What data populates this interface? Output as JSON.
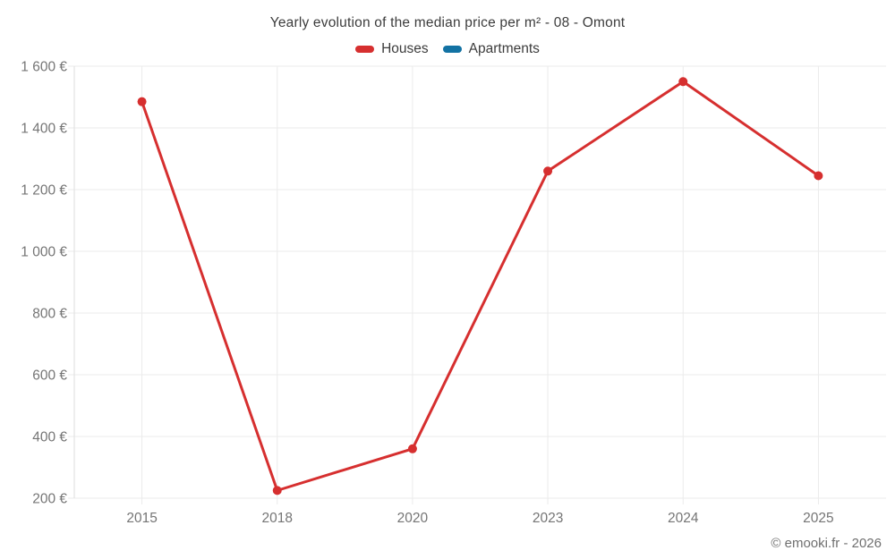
{
  "chart_data": {
    "type": "line",
    "title": "Yearly evolution of the median price per m² - 08 - Omont",
    "categories": [
      "2015",
      "2018",
      "2020",
      "2023",
      "2024",
      "2025"
    ],
    "series": [
      {
        "name": "Houses",
        "color": "#d62f2f",
        "values": [
          1485,
          225,
          360,
          1260,
          1550,
          1245
        ]
      },
      {
        "name": "Apartments",
        "color": "#1272a3",
        "values": []
      }
    ],
    "y_ticks": [
      200,
      400,
      600,
      800,
      1000,
      1200,
      1400,
      1600
    ],
    "y_tick_labels": [
      "200 €",
      "400 €",
      "600 €",
      "800 €",
      "1 000 €",
      "1 200 €",
      "1 400 €",
      "1 600 €"
    ],
    "ylim": [
      200,
      1600
    ],
    "unit": "€",
    "grid": true,
    "legend_position": "top",
    "marker": "circle"
  },
  "footer": {
    "copyright": "© emooki.fr - 2026"
  },
  "colors": {
    "grid": "#ebebeb",
    "axis": "#dedede",
    "tick_text": "#757575",
    "title_text": "#3c3c3c",
    "copyright_text": "#6f6f6f"
  }
}
